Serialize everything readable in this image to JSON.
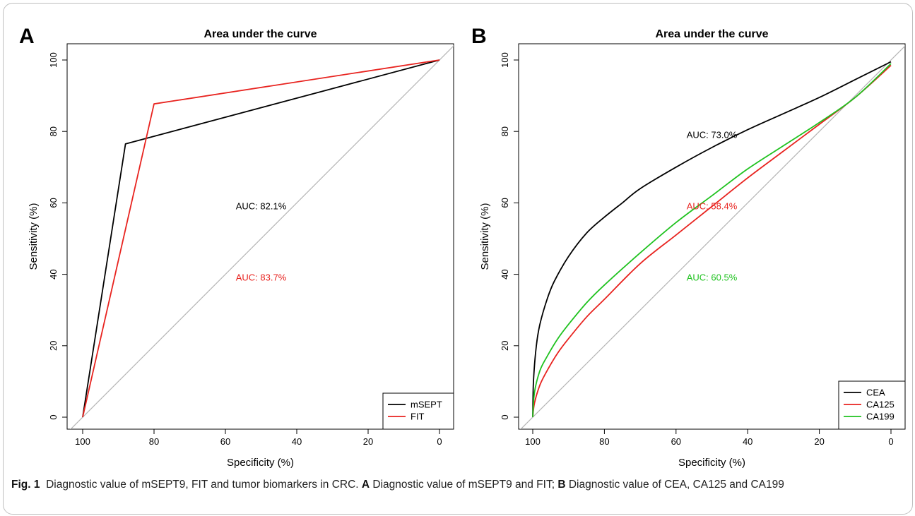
{
  "figure": {
    "caption_label": "Fig. 1",
    "caption_intro": "Diagnostic value of mSEPT9, FIT and tumor biomarkers in CRC.",
    "caption_a_label": "A",
    "caption_a_text": "Diagnostic value of mSEPT9 and FIT;",
    "caption_b_label": "B",
    "caption_b_text": "Diagnostic value of CEA, CA125 and CA199"
  },
  "colors": {
    "black": "#000000",
    "red": "#e8231f",
    "green": "#1fc21f",
    "diagonal": "#b5b5b5"
  },
  "chart_data": [
    {
      "panel": "A",
      "type": "line",
      "title": "Area under the curve",
      "xlabel": "Specificity (%)",
      "ylabel": "Sensitivity (%)",
      "xlim": [
        100,
        0
      ],
      "ylim": [
        0,
        100
      ],
      "xticks": [
        100,
        80,
        60,
        40,
        20,
        0
      ],
      "yticks": [
        0,
        20,
        40,
        60,
        80,
        100
      ],
      "legend_position": "bottom-right",
      "series": [
        {
          "name": "mSEPT",
          "color": "#000000",
          "x": [
            100,
            88,
            0
          ],
          "y": [
            0,
            76.5,
            100
          ]
        },
        {
          "name": "FIT",
          "color": "#e8231f",
          "x": [
            100,
            80,
            0
          ],
          "y": [
            0,
            87.7,
            100
          ]
        }
      ],
      "annotations": [
        {
          "text": "AUC: 82.1%",
          "x": 50,
          "y": 59,
          "color": "#000000"
        },
        {
          "text": "AUC: 83.7%",
          "x": 50,
          "y": 39,
          "color": "#e8231f"
        }
      ]
    },
    {
      "panel": "B",
      "type": "line",
      "title": "Area under the curve",
      "xlabel": "Specificity (%)",
      "ylabel": "Sensitivity (%)",
      "xlim": [
        100,
        0
      ],
      "ylim": [
        0,
        100
      ],
      "xticks": [
        100,
        80,
        60,
        40,
        20,
        0
      ],
      "yticks": [
        0,
        20,
        40,
        60,
        80,
        100
      ],
      "legend_position": "bottom-right",
      "series": [
        {
          "name": "CEA",
          "color": "#000000",
          "x": [
            100,
            99.8,
            99,
            98,
            96,
            94,
            90,
            85,
            80,
            75,
            70,
            60,
            50,
            40,
            30,
            20,
            10,
            0
          ],
          "y": [
            0,
            10,
            20,
            26,
            33,
            38,
            45,
            51.5,
            56,
            60,
            64,
            70,
            75.5,
            80.5,
            85,
            89.5,
            94.5,
            99.5
          ]
        },
        {
          "name": "CA125",
          "color": "#e8231f",
          "x": [
            100,
            99.5,
            98,
            96,
            93,
            90,
            85,
            80,
            70,
            60,
            50,
            40,
            30,
            20,
            10,
            0
          ],
          "y": [
            0,
            4,
            9,
            13,
            18,
            22,
            28,
            33,
            43,
            51,
            59,
            67,
            74.5,
            82,
            89.5,
            98.5
          ]
        },
        {
          "name": "CA199",
          "color": "#1fc21f",
          "x": [
            100,
            99.5,
            98,
            96,
            93,
            90,
            85,
            80,
            70,
            60,
            50,
            40,
            30,
            20,
            10,
            0
          ],
          "y": [
            0,
            7,
            13,
            17,
            22,
            26,
            32,
            37,
            46,
            54.5,
            62,
            69.5,
            76,
            82.5,
            89.5,
            99
          ]
        }
      ],
      "annotations": [
        {
          "text": "AUC: 73.0%",
          "x": 50,
          "y": 79,
          "color": "#000000"
        },
        {
          "text": "AUC: 58.4%",
          "x": 50,
          "y": 59,
          "color": "#e8231f"
        },
        {
          "text": "AUC: 60.5%",
          "x": 50,
          "y": 39,
          "color": "#1fc21f"
        }
      ]
    }
  ]
}
